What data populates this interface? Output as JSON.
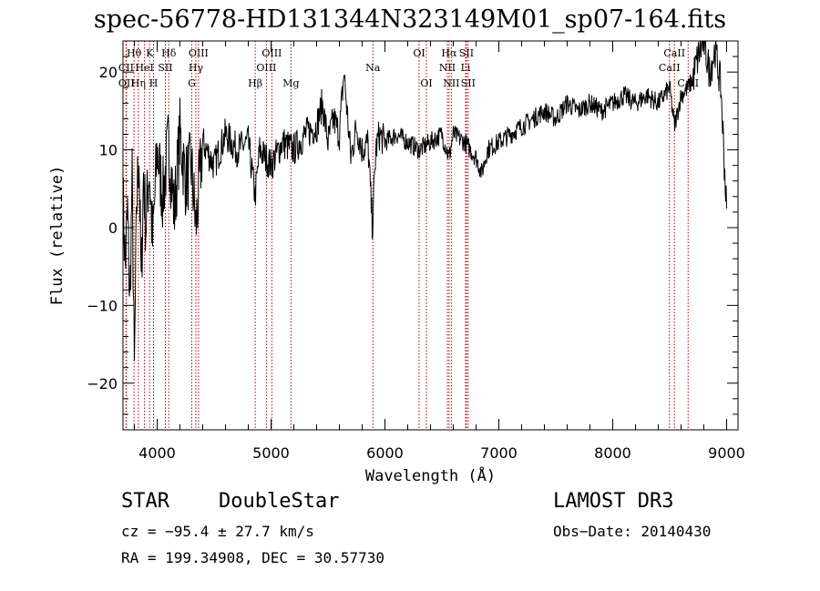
{
  "chart_data": {
    "type": "line",
    "title": "spec-56778-HD131344N323149M01_sp07-164.fits",
    "xlabel": "Wavelength (Å)",
    "ylabel": "Flux (relative)",
    "xlim": [
      3700,
      9100
    ],
    "ylim": [
      -26,
      24
    ],
    "xticks": [
      4000,
      5000,
      6000,
      7000,
      8000,
      9000
    ],
    "yticks": [
      -20,
      -10,
      0,
      10,
      20
    ],
    "grid": false,
    "series": [
      {
        "name": "flux",
        "x": [
          3700,
          3720,
          3740,
          3760,
          3780,
          3800,
          3820,
          3840,
          3860,
          3880,
          3900,
          3930,
          3960,
          4000,
          4050,
          4100,
          4150,
          4200,
          4250,
          4300,
          4340,
          4400,
          4500,
          4600,
          4700,
          4800,
          4860,
          4900,
          5000,
          5100,
          5200,
          5300,
          5400,
          5450,
          5500,
          5550,
          5600,
          5640,
          5700,
          5750,
          5800,
          5850,
          5890,
          5920,
          5950,
          6000,
          6100,
          6200,
          6300,
          6400,
          6500,
          6563,
          6600,
          6700,
          6800,
          6850,
          6900,
          7000,
          7100,
          7200,
          7300,
          7400,
          7500,
          7600,
          7700,
          7800,
          7900,
          8000,
          8100,
          8200,
          8300,
          8400,
          8500,
          8542,
          8600,
          8662,
          8700,
          8750,
          8800,
          8850,
          8900,
          8950,
          9000
        ],
        "y": [
          4,
          -5,
          2,
          -10,
          6,
          -19,
          3,
          10,
          -8,
          7,
          0,
          8,
          -2,
          10,
          4,
          11,
          2,
          12,
          6,
          8,
          0,
          11,
          8,
          12,
          10,
          11,
          4,
          10,
          8,
          11,
          10,
          12,
          13,
          16,
          11,
          14,
          12,
          20,
          9,
          13,
          10,
          11,
          0,
          10,
          12,
          11,
          12,
          11,
          10,
          11,
          12,
          9,
          12,
          11,
          9,
          7,
          10,
          11,
          12,
          13,
          14,
          15,
          14,
          16,
          15,
          16,
          15,
          16,
          17,
          16,
          17,
          16,
          18,
          13,
          17,
          18,
          19,
          22,
          24,
          20,
          23,
          18,
          2
        ]
      }
    ],
    "lines": [
      {
        "name": "CII",
        "wave": 3727,
        "row": 2
      },
      {
        "name": "OII",
        "wave": 3730,
        "row": 3
      },
      {
        "name": "Hθ",
        "wave": 3797,
        "row": 1
      },
      {
        "name": "Hη",
        "wave": 3835,
        "row": 3
      },
      {
        "name": "HeI",
        "wave": 3889,
        "row": 2
      },
      {
        "name": "K",
        "wave": 3934,
        "row": 1
      },
      {
        "name": "H",
        "wave": 3968,
        "row": 3
      },
      {
        "name": "SII",
        "wave": 4072,
        "row": 2
      },
      {
        "name": "Hδ",
        "wave": 4102,
        "row": 1
      },
      {
        "name": "G",
        "wave": 4304,
        "row": 3
      },
      {
        "name": "Hγ",
        "wave": 4340,
        "row": 2
      },
      {
        "name": "OIII",
        "wave": 4363,
        "row": 1
      },
      {
        "name": "Hβ",
        "wave": 4861,
        "row": 3
      },
      {
        "name": "OIII",
        "wave": 4959,
        "row": 2
      },
      {
        "name": "OIII",
        "wave": 5007,
        "row": 1
      },
      {
        "name": "Mg",
        "wave": 5175,
        "row": 3
      },
      {
        "name": "Na",
        "wave": 5894,
        "row": 2
      },
      {
        "name": "OI",
        "wave": 6300,
        "row": 1
      },
      {
        "name": "OI",
        "wave": 6364,
        "row": 3
      },
      {
        "name": "NII",
        "wave": 6548,
        "row": 2
      },
      {
        "name": "Hα",
        "wave": 6563,
        "row": 1
      },
      {
        "name": "NII",
        "wave": 6583,
        "row": 3
      },
      {
        "name": "Li",
        "wave": 6708,
        "row": 2
      },
      {
        "name": "SII",
        "wave": 6716,
        "row": 1
      },
      {
        "name": "SII",
        "wave": 6731,
        "row": 3
      },
      {
        "name": "CaII",
        "wave": 8498,
        "row": 2
      },
      {
        "name": "CaII",
        "wave": 8542,
        "row": 1
      },
      {
        "name": "CaII",
        "wave": 8662,
        "row": 3
      }
    ]
  },
  "info": {
    "class": "STAR",
    "subclass": "DoubleStar",
    "survey": "LAMOST DR3",
    "cz": "cz = −95.4 ± 27.7 km/s",
    "obs_date": "Obs−Date: 20140430",
    "radec": "RA = 199.34908, DEC =  30.57730"
  }
}
